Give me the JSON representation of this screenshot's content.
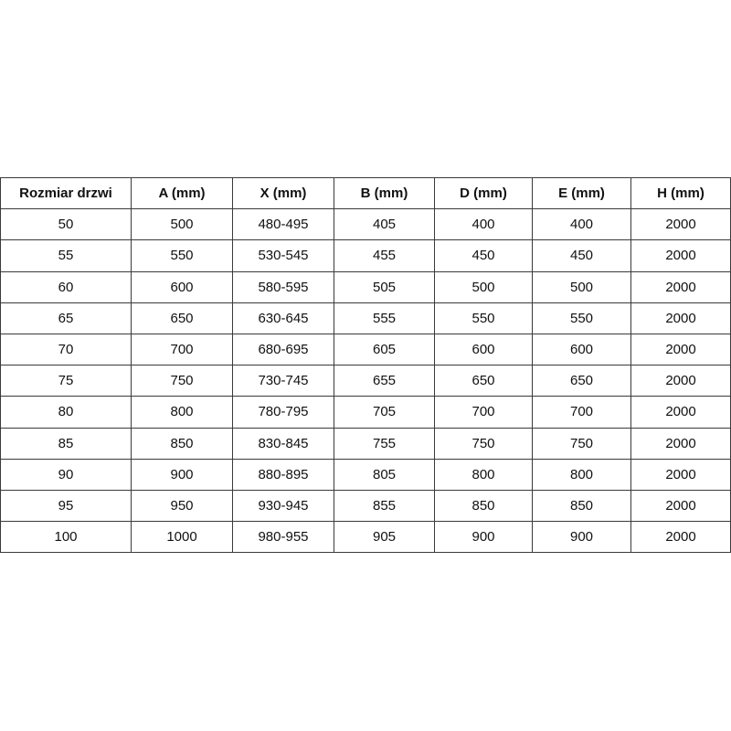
{
  "table": {
    "headers": [
      "Rozmiar drzwi",
      "A (mm)",
      "X (mm)",
      "B (mm)",
      "D (mm)",
      "E (mm)",
      "H (mm)"
    ],
    "rows": [
      [
        "50",
        "500",
        "480-495",
        "405",
        "400",
        "400",
        "2000"
      ],
      [
        "55",
        "550",
        "530-545",
        "455",
        "450",
        "450",
        "2000"
      ],
      [
        "60",
        "600",
        "580-595",
        "505",
        "500",
        "500",
        "2000"
      ],
      [
        "65",
        "650",
        "630-645",
        "555",
        "550",
        "550",
        "2000"
      ],
      [
        "70",
        "700",
        "680-695",
        "605",
        "600",
        "600",
        "2000"
      ],
      [
        "75",
        "750",
        "730-745",
        "655",
        "650",
        "650",
        "2000"
      ],
      [
        "80",
        "800",
        "780-795",
        "705",
        "700",
        "700",
        "2000"
      ],
      [
        "85",
        "850",
        "830-845",
        "755",
        "750",
        "750",
        "2000"
      ],
      [
        "90",
        "900",
        "880-895",
        "805",
        "800",
        "800",
        "2000"
      ],
      [
        "95",
        "950",
        "930-945",
        "855",
        "850",
        "850",
        "2000"
      ],
      [
        "100",
        "1000",
        "980-955",
        "905",
        "900",
        "900",
        "2000"
      ]
    ]
  }
}
